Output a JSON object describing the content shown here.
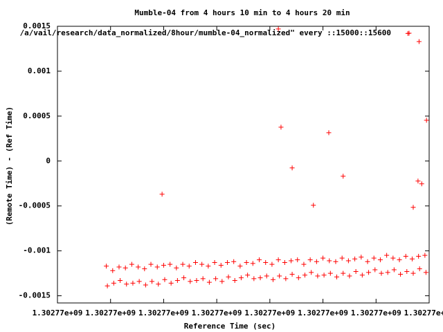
{
  "chart_data": {
    "type": "scatter",
    "title": "Mumble-04 from 4 hours 10 min to 4 hours 20 min",
    "x_label": "Reference Time (sec)",
    "y_label": "(Remote Time) - (Ref Time)",
    "xlim": [
      1302770000,
      1302770700
    ],
    "ylim": [
      -0.00158,
      0.0015
    ],
    "xticks": [
      {
        "value": 1302770000,
        "label": "1.30277e+09"
      },
      {
        "value": 1302770100,
        "label": "1.30277e+09"
      },
      {
        "value": 1302770200,
        "label": "1.30277e+09"
      },
      {
        "value": 1302770300,
        "label": "1.30277e+09"
      },
      {
        "value": 1302770400,
        "label": "1.30277e+09"
      },
      {
        "value": 1302770500,
        "label": "1.30277e+09"
      },
      {
        "value": 1302770600,
        "label": "1.30277e+09"
      },
      {
        "value": 1302770700,
        "label": "1.30277e+09"
      }
    ],
    "yticks": [
      -0.0015,
      -0.001,
      -0.0005,
      0,
      0.0005,
      0.001,
      0.0015
    ],
    "legend": "top-right",
    "series": [
      {
        "name": "/a/vail/research/data_normalized/8hour/mumble-04_normalized\" every ::15000::15600",
        "color": "#ff0000",
        "x": [
          1302770197,
          1302770421,
          1302770442,
          1302770482,
          1302770511,
          1302770538,
          1302770416,
          1302770660,
          1302770681,
          1302770695,
          1302770670,
          1302770679,
          1302770686,
          1302770092,
          1302770104,
          1302770116,
          1302770128,
          1302770140,
          1302770152,
          1302770164,
          1302770176,
          1302770188,
          1302770200,
          1302770212,
          1302770224,
          1302770236,
          1302770248,
          1302770260,
          1302770272,
          1302770284,
          1302770296,
          1302770308,
          1302770320,
          1302770332,
          1302770344,
          1302770356,
          1302770368,
          1302770380,
          1302770392,
          1302770404,
          1302770416,
          1302770428,
          1302770440,
          1302770452,
          1302770464,
          1302770476,
          1302770488,
          1302770500,
          1302770512,
          1302770524,
          1302770536,
          1302770548,
          1302770560,
          1302770572,
          1302770584,
          1302770596,
          1302770608,
          1302770620,
          1302770632,
          1302770644,
          1302770656,
          1302770668,
          1302770680,
          1302770692,
          1302770094,
          1302770106,
          1302770118,
          1302770130,
          1302770142,
          1302770154,
          1302770166,
          1302770178,
          1302770190,
          1302770202,
          1302770214,
          1302770226,
          1302770238,
          1302770250,
          1302770262,
          1302770274,
          1302770286,
          1302770298,
          1302770310,
          1302770322,
          1302770334,
          1302770346,
          1302770358,
          1302770370,
          1302770382,
          1302770394,
          1302770406,
          1302770418,
          1302770430,
          1302770442,
          1302770454,
          1302770466,
          1302770478,
          1302770490,
          1302770502,
          1302770514,
          1302770526,
          1302770538,
          1302770550,
          1302770562,
          1302770574,
          1302770586,
          1302770598,
          1302770610,
          1302770622,
          1302770634,
          1302770646,
          1302770658,
          1302770670,
          1302770682,
          1302770694
        ],
        "values": [
          -0.000369,
          0.000377,
          -7.7e-05,
          -0.000492,
          0.000315,
          -0.000169,
          0.00147,
          0.00142,
          0.00133,
          0.000454,
          -0.000515,
          -0.000223,
          -0.000254,
          -0.00117,
          -0.00122,
          -0.00118,
          -0.00119,
          -0.00115,
          -0.00118,
          -0.0012,
          -0.00115,
          -0.00118,
          -0.00116,
          -0.00115,
          -0.00119,
          -0.00115,
          -0.00117,
          -0.00113,
          -0.00115,
          -0.00117,
          -0.00113,
          -0.00116,
          -0.00113,
          -0.00112,
          -0.00117,
          -0.00113,
          -0.00114,
          -0.0011,
          -0.00113,
          -0.00115,
          -0.0011,
          -0.00113,
          -0.00111,
          -0.0011,
          -0.00115,
          -0.0011,
          -0.00112,
          -0.00108,
          -0.00111,
          -0.00112,
          -0.00108,
          -0.00111,
          -0.00109,
          -0.00107,
          -0.00112,
          -0.00108,
          -0.0011,
          -0.00105,
          -0.00108,
          -0.0011,
          -0.00106,
          -0.00109,
          -0.00106,
          -0.00105,
          -0.00139,
          -0.00136,
          -0.00133,
          -0.00137,
          -0.00136,
          -0.00134,
          -0.00138,
          -0.00134,
          -0.00137,
          -0.00132,
          -0.00136,
          -0.00133,
          -0.0013,
          -0.00134,
          -0.00133,
          -0.00131,
          -0.00135,
          -0.00131,
          -0.00134,
          -0.00129,
          -0.00133,
          -0.0013,
          -0.00127,
          -0.00131,
          -0.0013,
          -0.00128,
          -0.00132,
          -0.00128,
          -0.00131,
          -0.00126,
          -0.0013,
          -0.00127,
          -0.00124,
          -0.00128,
          -0.00127,
          -0.00125,
          -0.00129,
          -0.00125,
          -0.00128,
          -0.00123,
          -0.00127,
          -0.00124,
          -0.00121,
          -0.00125,
          -0.00124,
          -0.00121,
          -0.00126,
          -0.00123,
          -0.00125,
          -0.0012,
          -0.00124
        ]
      }
    ]
  }
}
